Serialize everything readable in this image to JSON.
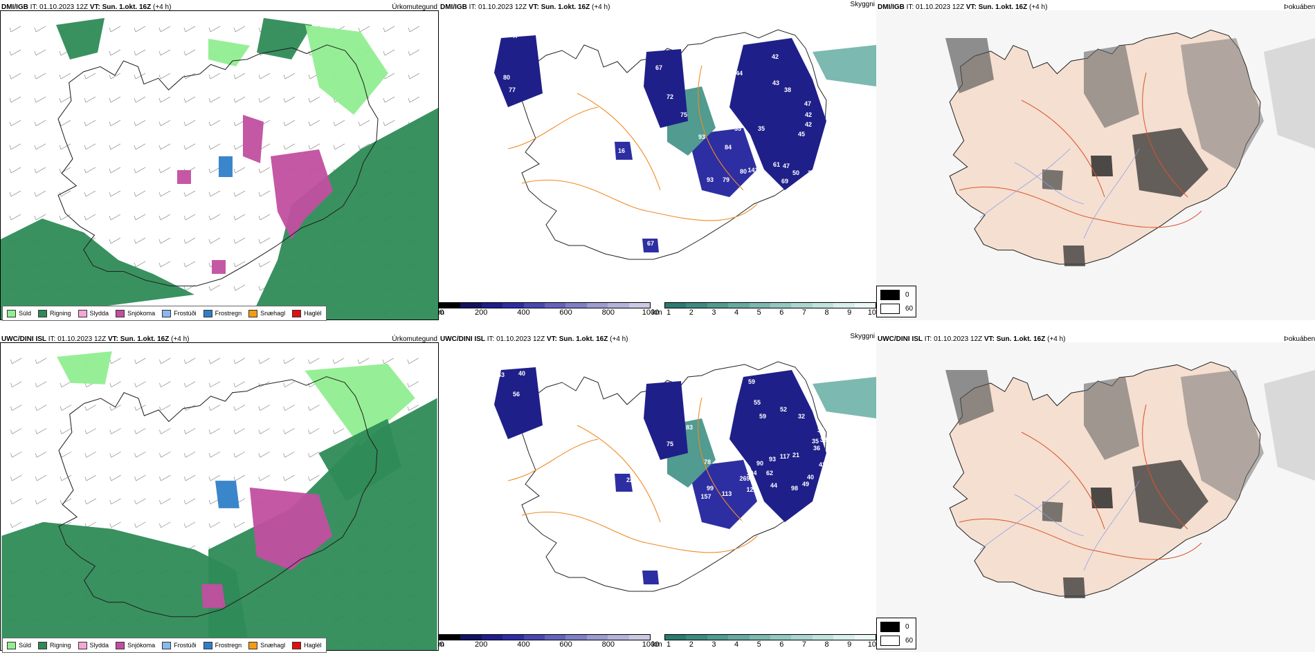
{
  "rows": [
    {
      "model": "DMI/IGB",
      "it_label": "IT:",
      "it": "01.10.2023 12Z",
      "vt_label": "VT:",
      "vt": "Sun. 1.okt. 16Z",
      "lead": "(+4 h)",
      "titles": {
        "precip": "Úrkomutegund",
        "cloud": "Skyggni",
        "fog": "Þokuábendi"
      },
      "cloud_labels": [
        "47",
        "80",
        "77",
        "40",
        "72",
        "67",
        "51",
        "44",
        "42",
        "43",
        "38",
        "47",
        "42",
        "42",
        "45",
        "47",
        "50",
        "30",
        "53",
        "69",
        "61",
        "141",
        "80",
        "79",
        "93",
        "84",
        "53",
        "35",
        "72",
        "20",
        "67",
        "16",
        "15",
        "93",
        "72",
        "75"
      ]
    },
    {
      "model": "UWC/DINI ISL",
      "it_label": "IT:",
      "it": "01.10.2023 12Z",
      "vt_label": "VT:",
      "vt": "Sun. 1.okt. 16Z",
      "lead": "(+4 h)",
      "titles": {
        "precip": "Úrkomutegund",
        "cloud": "Skyggni",
        "fog": "Þokuábendi"
      },
      "cloud_labels": [
        "72",
        "59",
        "43",
        "40",
        "56",
        "47",
        "59",
        "55",
        "59",
        "52",
        "32",
        "35",
        "35",
        "36",
        "38",
        "42",
        "40",
        "49",
        "98",
        "44",
        "62",
        "117",
        "21",
        "93",
        "90",
        "104",
        "269",
        "122",
        "113",
        "157",
        "99",
        "78",
        "48",
        "10",
        "83",
        "75",
        "58",
        "22",
        "98",
        "16",
        "40"
      ]
    }
  ],
  "precip_legend": [
    {
      "label": "Súld",
      "color": "#90ee90"
    },
    {
      "label": "Rigning",
      "color": "#2e8b57"
    },
    {
      "label": "Slydda",
      "color": "#f4a6d7"
    },
    {
      "label": "Snjókoma",
      "color": "#c24fa0"
    },
    {
      "label": "Frostúði",
      "color": "#87b9ee"
    },
    {
      "label": "Frostregn",
      "color": "#2f7fc8"
    },
    {
      "label": "Snæhagl",
      "color": "#f39c12"
    },
    {
      "label": "Haglél",
      "color": "#e01010"
    }
  ],
  "height_bar": {
    "unit": "m",
    "ticks": [
      "0",
      "200",
      "400",
      "600",
      "800",
      "1000"
    ],
    "colors": [
      "#000000",
      "#121260",
      "#1f1f8a",
      "#2e2ea3",
      "#4848b0",
      "#6464bb",
      "#8080c6",
      "#9c9cd0",
      "#b4b4da",
      "#cacae4"
    ]
  },
  "vis_bar": {
    "unit": "km",
    "ticks": [
      "1",
      "2",
      "3",
      "4",
      "5",
      "6",
      "7",
      "8",
      "9",
      "10"
    ],
    "colors": [
      "#2c7a70",
      "#3e8a80",
      "#519b90",
      "#66aaa0",
      "#7cb9b0",
      "#93c8c0",
      "#aad6cf",
      "#c1e3dd",
      "#d8efec",
      "#ecf8f6"
    ]
  },
  "fog_legend": [
    {
      "label": "0",
      "color": "#000000"
    },
    {
      "label": "60",
      "color": "#ffffff"
    }
  ]
}
